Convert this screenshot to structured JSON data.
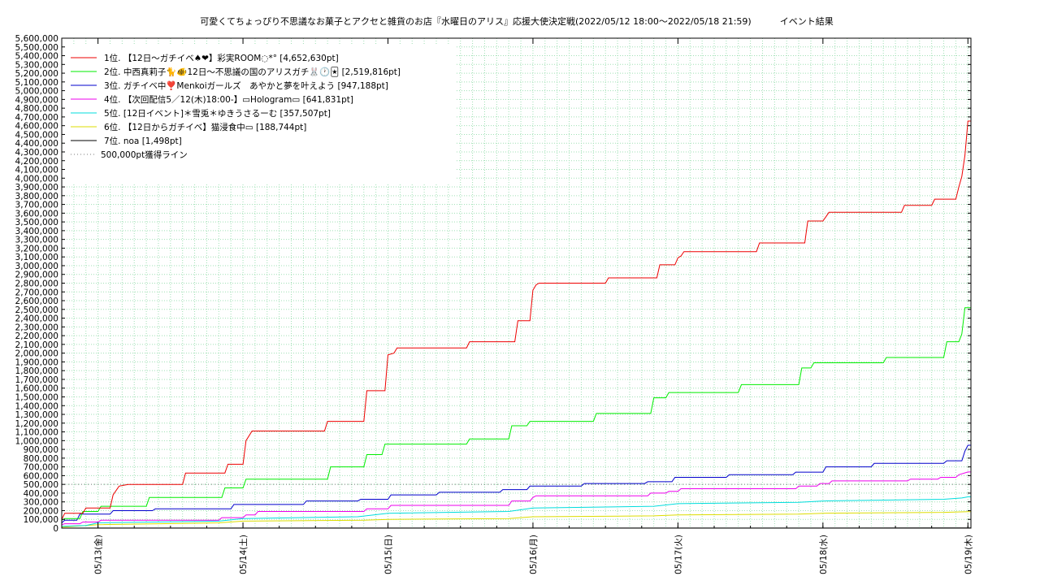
{
  "chart_data": {
    "type": "line",
    "title": "可愛くてちょっぴり不思議なお菓子とアクセと雑貨のお店『水曜日のアリス』応援大使決定戦(2022/05/12 18:00～2022/05/18 21:59)",
    "subtitle": "イベント結果",
    "x_ticks": [
      "05/13(金)",
      "05/14(土)",
      "05/15(日)",
      "05/16(月)",
      "05/17(火)",
      "05/18(水)",
      "05/19(木)"
    ],
    "xlim": [
      "2022/05/12 18:00",
      "2022/05/19 00:30"
    ],
    "ylim": [
      0,
      5600000
    ],
    "y_tick_step": 100000,
    "grid": true,
    "legend_placement": "top-left",
    "threshold": {
      "name": "500,000pt獲得ライン",
      "value": 500000,
      "color": "#7a7a7a",
      "style": "dotted"
    },
    "series": [
      {
        "name": "1位. 【12日～ガチイベ♠❤】彩実ROOM◌*° [4,652,630pt]",
        "color": "#ee0000",
        "points": [
          [
            "2022/05/12 18:00",
            100000
          ],
          [
            "2022/05/12 18:30",
            170000
          ],
          [
            "2022/05/12 21:30",
            170000
          ],
          [
            "2022/05/12 22:00",
            230000
          ],
          [
            "2022/05/13 02:00",
            230000
          ],
          [
            "2022/05/13 02:30",
            380000
          ],
          [
            "2022/05/13 03:30",
            480000
          ],
          [
            "2022/05/13 05:00",
            500000
          ],
          [
            "2022/05/13 14:00",
            500000
          ],
          [
            "2022/05/13 14:30",
            630000
          ],
          [
            "2022/05/13 21:00",
            630000
          ],
          [
            "2022/05/13 21:30",
            730000
          ],
          [
            "2022/05/14 00:00",
            730000
          ],
          [
            "2022/05/14 00:30",
            1000000
          ],
          [
            "2022/05/14 01:30",
            1110000
          ],
          [
            "2022/05/14 13:30",
            1110000
          ],
          [
            "2022/05/14 14:00",
            1220000
          ],
          [
            "2022/05/14 20:00",
            1220000
          ],
          [
            "2022/05/14 20:30",
            1570000
          ],
          [
            "2022/05/14 23:30",
            1570000
          ],
          [
            "2022/05/15 00:00",
            1980000
          ],
          [
            "2022/05/15 01:00",
            2000000
          ],
          [
            "2022/05/15 01:30",
            2060000
          ],
          [
            "2022/05/15 13:00",
            2060000
          ],
          [
            "2022/05/15 13:30",
            2130000
          ],
          [
            "2022/05/15 21:00",
            2130000
          ],
          [
            "2022/05/15 21:30",
            2370000
          ],
          [
            "2022/05/15 23:30",
            2370000
          ],
          [
            "2022/05/16 00:00",
            2720000
          ],
          [
            "2022/05/16 00:30",
            2780000
          ],
          [
            "2022/05/16 01:00",
            2800000
          ],
          [
            "2022/05/16 12:00",
            2800000
          ],
          [
            "2022/05/16 12:30",
            2860000
          ],
          [
            "2022/05/16 20:30",
            2860000
          ],
          [
            "2022/05/16 21:00",
            3010000
          ],
          [
            "2022/05/16 23:30",
            3010000
          ],
          [
            "2022/05/17 00:00",
            3090000
          ],
          [
            "2022/05/17 00:30",
            3110000
          ],
          [
            "2022/05/17 01:00",
            3160000
          ],
          [
            "2022/05/17 13:00",
            3160000
          ],
          [
            "2022/05/17 13:30",
            3260000
          ],
          [
            "2022/05/17 21:00",
            3260000
          ],
          [
            "2022/05/17 21:30",
            3510000
          ],
          [
            "2022/05/18 00:00",
            3510000
          ],
          [
            "2022/05/18 00:30",
            3560000
          ],
          [
            "2022/05/18 01:00",
            3610000
          ],
          [
            "2022/05/18 13:00",
            3610000
          ],
          [
            "2022/05/18 13:30",
            3690000
          ],
          [
            "2022/05/18 18:00",
            3690000
          ],
          [
            "2022/05/18 18:30",
            3760000
          ],
          [
            "2022/05/18 22:00",
            3760000
          ],
          [
            "2022/05/18 22:30",
            3900000
          ],
          [
            "2022/05/18 23:00",
            4020000
          ],
          [
            "2022/05/18 23:30",
            4260000
          ],
          [
            "2022/05/19 00:00",
            4652630
          ],
          [
            "2022/05/19 00:30",
            4652630
          ]
        ]
      },
      {
        "name": "2位. 中西真莉子🐈🐠12日～不思議の国のアリスガチ🐰🕐🃏 [2,519,816pt]",
        "color": "#00ee00",
        "points": [
          [
            "2022/05/12 18:00",
            90000
          ],
          [
            "2022/05/12 18:30",
            110000
          ],
          [
            "2022/05/12 21:00",
            110000
          ],
          [
            "2022/05/12 21:30",
            190000
          ],
          [
            "2022/05/13 00:00",
            190000
          ],
          [
            "2022/05/13 00:30",
            250000
          ],
          [
            "2022/05/13 08:00",
            250000
          ],
          [
            "2022/05/13 08:30",
            350000
          ],
          [
            "2022/05/13 20:30",
            350000
          ],
          [
            "2022/05/13 21:00",
            460000
          ],
          [
            "2022/05/14 00:00",
            460000
          ],
          [
            "2022/05/14 00:30",
            560000
          ],
          [
            "2022/05/14 14:00",
            560000
          ],
          [
            "2022/05/14 14:30",
            700000
          ],
          [
            "2022/05/14 20:00",
            700000
          ],
          [
            "2022/05/14 20:30",
            840000
          ],
          [
            "2022/05/14 23:00",
            840000
          ],
          [
            "2022/05/14 23:30",
            960000
          ],
          [
            "2022/05/15 13:00",
            960000
          ],
          [
            "2022/05/15 13:30",
            1020000
          ],
          [
            "2022/05/15 20:00",
            1020000
          ],
          [
            "2022/05/15 20:30",
            1170000
          ],
          [
            "2022/05/15 23:00",
            1170000
          ],
          [
            "2022/05/15 23:30",
            1220000
          ],
          [
            "2022/05/16 10:00",
            1220000
          ],
          [
            "2022/05/16 10:30",
            1310000
          ],
          [
            "2022/05/16 19:30",
            1310000
          ],
          [
            "2022/05/16 20:00",
            1490000
          ],
          [
            "2022/05/16 22:00",
            1490000
          ],
          [
            "2022/05/16 22:30",
            1550000
          ],
          [
            "2022/05/17 10:00",
            1550000
          ],
          [
            "2022/05/17 10:30",
            1640000
          ],
          [
            "2022/05/17 20:00",
            1640000
          ],
          [
            "2022/05/17 20:30",
            1830000
          ],
          [
            "2022/05/17 22:00",
            1830000
          ],
          [
            "2022/05/17 22:30",
            1890000
          ],
          [
            "2022/05/18 10:00",
            1890000
          ],
          [
            "2022/05/18 10:30",
            1950000
          ],
          [
            "2022/05/18 20:00",
            1950000
          ],
          [
            "2022/05/18 20:30",
            2130000
          ],
          [
            "2022/05/18 22:30",
            2130000
          ],
          [
            "2022/05/18 23:00",
            2220000
          ],
          [
            "2022/05/18 23:30",
            2519816
          ],
          [
            "2022/05/19 00:30",
            2519816
          ]
        ]
      },
      {
        "name": "3位. ガチイベ中❣️Menkoiガールズ　あやかと夢を叶えよう [947,188pt]",
        "color": "#0000cc",
        "points": [
          [
            "2022/05/12 18:00",
            60000
          ],
          [
            "2022/05/12 18:30",
            90000
          ],
          [
            "2022/05/12 20:30",
            90000
          ],
          [
            "2022/05/12 21:00",
            160000
          ],
          [
            "2022/05/13 02:00",
            160000
          ],
          [
            "2022/05/13 02:30",
            200000
          ],
          [
            "2022/05/13 09:00",
            200000
          ],
          [
            "2022/05/13 09:30",
            220000
          ],
          [
            "2022/05/13 22:00",
            220000
          ],
          [
            "2022/05/13 22:30",
            270000
          ],
          [
            "2022/05/14 10:00",
            270000
          ],
          [
            "2022/05/14 10:30",
            310000
          ],
          [
            "2022/05/14 19:00",
            310000
          ],
          [
            "2022/05/14 19:30",
            330000
          ],
          [
            "2022/05/15 00:00",
            330000
          ],
          [
            "2022/05/15 00:30",
            380000
          ],
          [
            "2022/05/15 08:00",
            380000
          ],
          [
            "2022/05/15 08:30",
            410000
          ],
          [
            "2022/05/15 18:30",
            410000
          ],
          [
            "2022/05/15 19:00",
            440000
          ],
          [
            "2022/05/15 23:00",
            440000
          ],
          [
            "2022/05/15 23:30",
            480000
          ],
          [
            "2022/05/16 08:00",
            480000
          ],
          [
            "2022/05/16 08:30",
            510000
          ],
          [
            "2022/05/16 18:30",
            510000
          ],
          [
            "2022/05/16 19:00",
            530000
          ],
          [
            "2022/05/16 23:00",
            530000
          ],
          [
            "2022/05/16 23:30",
            580000
          ],
          [
            "2022/05/17 08:00",
            580000
          ],
          [
            "2022/05/17 08:30",
            610000
          ],
          [
            "2022/05/17 19:00",
            610000
          ],
          [
            "2022/05/17 19:30",
            640000
          ],
          [
            "2022/05/18 00:00",
            640000
          ],
          [
            "2022/05/18 00:30",
            700000
          ],
          [
            "2022/05/18 08:00",
            700000
          ],
          [
            "2022/05/18 08:30",
            740000
          ],
          [
            "2022/05/18 20:00",
            740000
          ],
          [
            "2022/05/18 20:30",
            770000
          ],
          [
            "2022/05/18 23:00",
            770000
          ],
          [
            "2022/05/18 23:30",
            880000
          ],
          [
            "2022/05/19 00:00",
            947188
          ],
          [
            "2022/05/19 00:30",
            947188
          ]
        ]
      },
      {
        "name": "4位. 【次回配信5／12(木)18:00-】▭Hologram▭ [641,831pt]",
        "color": "#ee00ee",
        "points": [
          [
            "2022/05/12 18:00",
            40000
          ],
          [
            "2022/05/12 18:30",
            50000
          ],
          [
            "2022/05/12 21:00",
            50000
          ],
          [
            "2022/05/12 21:30",
            70000
          ],
          [
            "2022/05/13 00:00",
            70000
          ],
          [
            "2022/05/13 00:30",
            90000
          ],
          [
            "2022/05/13 20:00",
            90000
          ],
          [
            "2022/05/13 20:30",
            120000
          ],
          [
            "2022/05/14 00:00",
            120000
          ],
          [
            "2022/05/14 00:30",
            150000
          ],
          [
            "2022/05/14 02:00",
            150000
          ],
          [
            "2022/05/14 02:30",
            190000
          ],
          [
            "2022/05/14 20:00",
            190000
          ],
          [
            "2022/05/14 20:30",
            220000
          ],
          [
            "2022/05/15 00:00",
            220000
          ],
          [
            "2022/05/15 00:30",
            260000
          ],
          [
            "2022/05/15 20:00",
            260000
          ],
          [
            "2022/05/15 20:30",
            310000
          ],
          [
            "2022/05/15 23:30",
            310000
          ],
          [
            "2022/05/16 00:00",
            350000
          ],
          [
            "2022/05/16 00:30",
            370000
          ],
          [
            "2022/05/16 19:00",
            370000
          ],
          [
            "2022/05/16 19:30",
            400000
          ],
          [
            "2022/05/16 22:00",
            400000
          ],
          [
            "2022/05/16 22:30",
            420000
          ],
          [
            "2022/05/17 00:00",
            420000
          ],
          [
            "2022/05/17 00:30",
            450000
          ],
          [
            "2022/05/17 19:30",
            450000
          ],
          [
            "2022/05/17 20:00",
            480000
          ],
          [
            "2022/05/17 23:00",
            480000
          ],
          [
            "2022/05/17 23:30",
            510000
          ],
          [
            "2022/05/18 01:00",
            510000
          ],
          [
            "2022/05/18 01:30",
            540000
          ],
          [
            "2022/05/18 14:00",
            540000
          ],
          [
            "2022/05/18 14:30",
            560000
          ],
          [
            "2022/05/18 19:00",
            560000
          ],
          [
            "2022/05/18 19:30",
            580000
          ],
          [
            "2022/05/18 22:00",
            580000
          ],
          [
            "2022/05/18 22:30",
            610000
          ],
          [
            "2022/05/19 00:00",
            641831
          ],
          [
            "2022/05/19 00:30",
            641831
          ]
        ]
      },
      {
        "name": "5位. [12日イベント]＊雪兎＊ゆきうさるーむ [357,507pt]",
        "color": "#00dddd",
        "points": [
          [
            "2022/05/12 18:00",
            20000
          ],
          [
            "2022/05/12 22:00",
            30000
          ],
          [
            "2022/05/13 00:00",
            60000
          ],
          [
            "2022/05/13 20:00",
            80000
          ],
          [
            "2022/05/14 00:00",
            110000
          ],
          [
            "2022/05/14 19:00",
            130000
          ],
          [
            "2022/05/15 00:00",
            170000
          ],
          [
            "2022/05/15 20:00",
            190000
          ],
          [
            "2022/05/16 00:00",
            230000
          ],
          [
            "2022/05/16 20:00",
            250000
          ],
          [
            "2022/05/17 00:00",
            280000
          ],
          [
            "2022/05/17 20:00",
            295000
          ],
          [
            "2022/05/18 00:00",
            310000
          ],
          [
            "2022/05/18 20:00",
            330000
          ],
          [
            "2022/05/18 23:00",
            345000
          ],
          [
            "2022/05/19 00:00",
            357507
          ],
          [
            "2022/05/19 00:30",
            357507
          ]
        ]
      },
      {
        "name": "6位. 【12日からガチイベ】猫浸食中▭ [188,744pt]",
        "color": "#dddd00",
        "points": [
          [
            "2022/05/12 18:00",
            10000
          ],
          [
            "2022/05/13 00:00",
            40000
          ],
          [
            "2022/05/13 20:00",
            60000
          ],
          [
            "2022/05/14 00:00",
            80000
          ],
          [
            "2022/05/14 20:00",
            90000
          ],
          [
            "2022/05/15 00:00",
            100000
          ],
          [
            "2022/05/15 20:00",
            110000
          ],
          [
            "2022/05/16 00:00",
            130000
          ],
          [
            "2022/05/16 20:00",
            140000
          ],
          [
            "2022/05/17 00:00",
            150000
          ],
          [
            "2022/05/17 20:00",
            160000
          ],
          [
            "2022/05/18 00:00",
            170000
          ],
          [
            "2022/05/18 20:00",
            180000
          ],
          [
            "2022/05/19 00:00",
            188744
          ],
          [
            "2022/05/19 00:30",
            188744
          ]
        ]
      },
      {
        "name": "7位. noa [1,498pt]",
        "color": "#000000",
        "points": [
          [
            "2022/05/12 18:00",
            0
          ],
          [
            "2022/05/13 00:00",
            1000
          ],
          [
            "2022/05/19 00:00",
            1498
          ],
          [
            "2022/05/19 00:30",
            1498
          ]
        ]
      }
    ]
  }
}
